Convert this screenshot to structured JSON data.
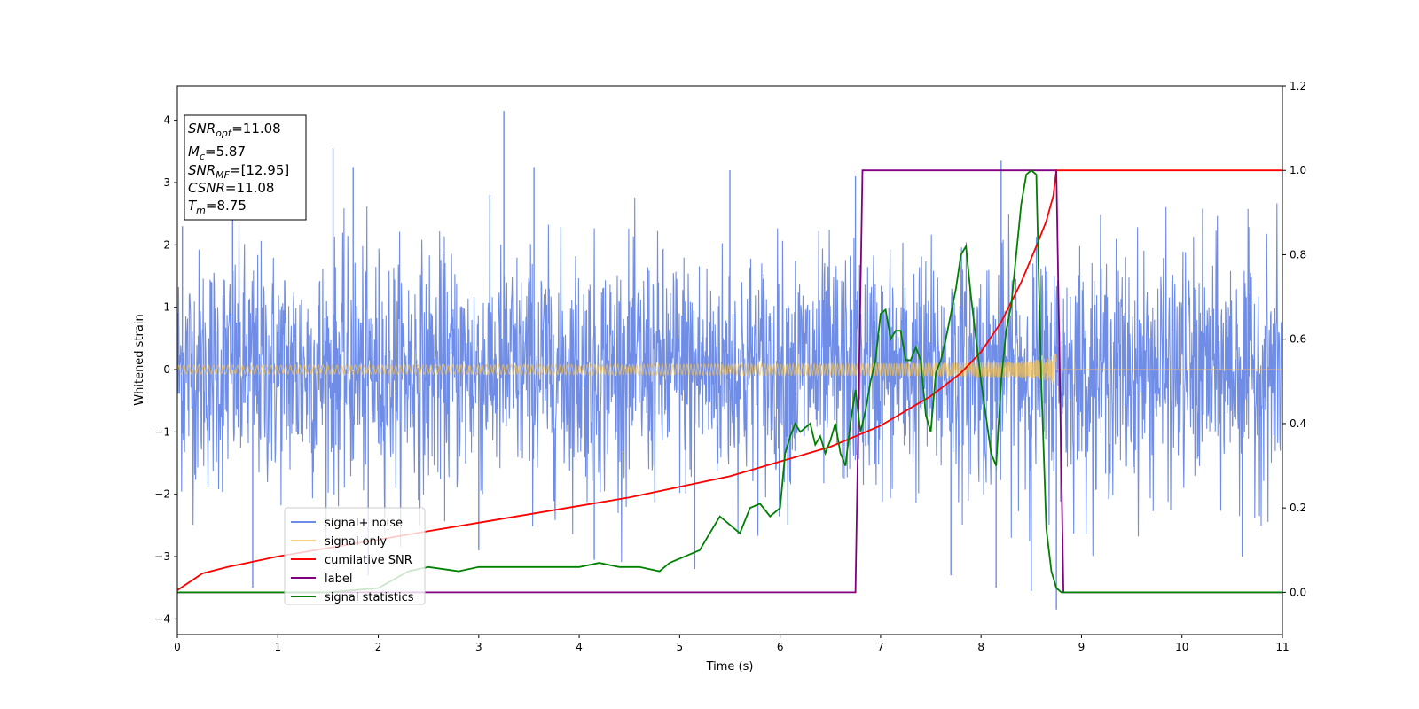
{
  "chart_data": {
    "type": "line",
    "xlabel": "Time (s)",
    "ylabel": "Whitened strain",
    "xlim": [
      0,
      11
    ],
    "ylim": [
      -4.25,
      4.55
    ],
    "y2lim": [
      -0.1,
      1.2
    ],
    "x_ticks": [
      "0",
      "1",
      "2",
      "3",
      "4",
      "5",
      "6",
      "7",
      "8",
      "9",
      "10",
      "11"
    ],
    "y_ticks": [
      "−4",
      "−3",
      "−2",
      "−1",
      "0",
      "1",
      "2",
      "3",
      "4"
    ],
    "y2_ticks": [
      "0.0",
      "0.2",
      "0.4",
      "0.6",
      "0.8",
      "1.0",
      "1.2"
    ],
    "grid": false,
    "legend_position": "lower-left",
    "annotation": [
      {
        "sym": "SNR",
        "sub": "opt",
        "value": "=11.08"
      },
      {
        "sym": "M",
        "sub": "c",
        "value": "=5.87"
      },
      {
        "sym": "SNR",
        "sub": "MF",
        "value": "=[12.95]"
      },
      {
        "sym": "CSNR",
        "sub": "",
        "value": "=11.08"
      },
      {
        "sym": "T",
        "sub": "m",
        "value": "=8.75"
      }
    ],
    "series": [
      {
        "name": "signal+ noise",
        "axis": "left",
        "color": "#6f8de6",
        "description_points": {
          "t": [
            0,
            11
          ],
          "noise_sigma": 1.0,
          "merger_time": 8.75,
          "visible_spikes": [
            [
              0.05,
              2.3
            ],
            [
              0.55,
              2.4
            ],
            [
              1.55,
              3.55
            ],
            [
              1.75,
              3.25
            ],
            [
              3.25,
              4.15
            ],
            [
              3.55,
              3.25
            ],
            [
              5.5,
              3.2
            ],
            [
              6.75,
              3.1
            ],
            [
              8.2,
              3.35
            ],
            [
              0.75,
              -3.5
            ],
            [
              1.9,
              -3.3
            ],
            [
              3.0,
              -2.9
            ],
            [
              4.15,
              -3.05
            ],
            [
              5.15,
              -3.2
            ],
            [
              7.7,
              -3.3
            ],
            [
              8.15,
              -3.5
            ],
            [
              8.5,
              -3.55
            ],
            [
              8.75,
              -3.85
            ],
            [
              10.6,
              -3.0
            ]
          ]
        }
      },
      {
        "name": "signal only",
        "axis": "left",
        "color": "#f5c14e",
        "chirp": {
          "start_amplitude": 0.07,
          "end_amplitude": 1.15,
          "merger_time": 8.75,
          "t": [
            0,
            8.75
          ]
        }
      },
      {
        "name": "cumilative SNR",
        "axis": "right",
        "color": "#ff0000",
        "x": [
          0,
          0.25,
          0.5,
          1.0,
          1.5,
          2.0,
          2.5,
          3.0,
          3.5,
          4.0,
          4.5,
          5.0,
          5.5,
          6.0,
          6.5,
          7.0,
          7.5,
          7.8,
          8.0,
          8.2,
          8.4,
          8.55,
          8.65,
          8.72,
          8.75,
          11.0
        ],
        "y": [
          0.005,
          0.045,
          0.06,
          0.085,
          0.105,
          0.125,
          0.145,
          0.165,
          0.185,
          0.205,
          0.225,
          0.25,
          0.275,
          0.31,
          0.345,
          0.395,
          0.465,
          0.52,
          0.57,
          0.64,
          0.735,
          0.82,
          0.88,
          0.94,
          1.0,
          1.0
        ]
      },
      {
        "name": "label",
        "axis": "right",
        "color": "#800080",
        "x": [
          0,
          6.75,
          6.82,
          8.75,
          8.82,
          11.0
        ],
        "y": [
          0.0,
          0.0,
          1.0,
          1.0,
          0.0,
          0.0
        ]
      },
      {
        "name": "signal statistics",
        "axis": "right",
        "color": "#008000",
        "x": [
          0,
          0.5,
          1.0,
          1.5,
          2.0,
          2.3,
          2.5,
          2.8,
          3.0,
          3.5,
          4.0,
          4.2,
          4.4,
          4.6,
          4.8,
          4.9,
          5.0,
          5.2,
          5.3,
          5.4,
          5.5,
          5.6,
          5.7,
          5.8,
          5.9,
          6.0,
          6.05,
          6.1,
          6.15,
          6.2,
          6.3,
          6.35,
          6.4,
          6.45,
          6.5,
          6.55,
          6.6,
          6.65,
          6.7,
          6.75,
          6.8,
          6.85,
          6.9,
          6.95,
          7.0,
          7.05,
          7.1,
          7.15,
          7.2,
          7.25,
          7.3,
          7.35,
          7.4,
          7.45,
          7.5,
          7.55,
          7.6,
          7.65,
          7.7,
          7.75,
          7.8,
          7.85,
          7.9,
          8.0,
          8.1,
          8.15,
          8.2,
          8.25,
          8.3,
          8.35,
          8.4,
          8.45,
          8.5,
          8.55,
          8.6,
          8.65,
          8.7,
          8.75,
          8.8,
          9.0,
          11.0
        ],
        "y": [
          0.0,
          0.0,
          0.0,
          0.0,
          0.01,
          0.05,
          0.06,
          0.05,
          0.06,
          0.06,
          0.06,
          0.07,
          0.06,
          0.06,
          0.05,
          0.07,
          0.08,
          0.1,
          0.14,
          0.18,
          0.16,
          0.14,
          0.2,
          0.21,
          0.18,
          0.2,
          0.33,
          0.37,
          0.4,
          0.38,
          0.4,
          0.35,
          0.37,
          0.33,
          0.36,
          0.4,
          0.33,
          0.3,
          0.4,
          0.48,
          0.38,
          0.43,
          0.5,
          0.55,
          0.66,
          0.67,
          0.6,
          0.62,
          0.62,
          0.55,
          0.55,
          0.58,
          0.55,
          0.42,
          0.38,
          0.52,
          0.55,
          0.6,
          0.66,
          0.72,
          0.8,
          0.82,
          0.7,
          0.5,
          0.33,
          0.3,
          0.5,
          0.62,
          0.68,
          0.8,
          0.92,
          0.99,
          1.0,
          0.99,
          0.5,
          0.15,
          0.05,
          0.01,
          0.0,
          0.0,
          0.0
        ]
      }
    ]
  }
}
